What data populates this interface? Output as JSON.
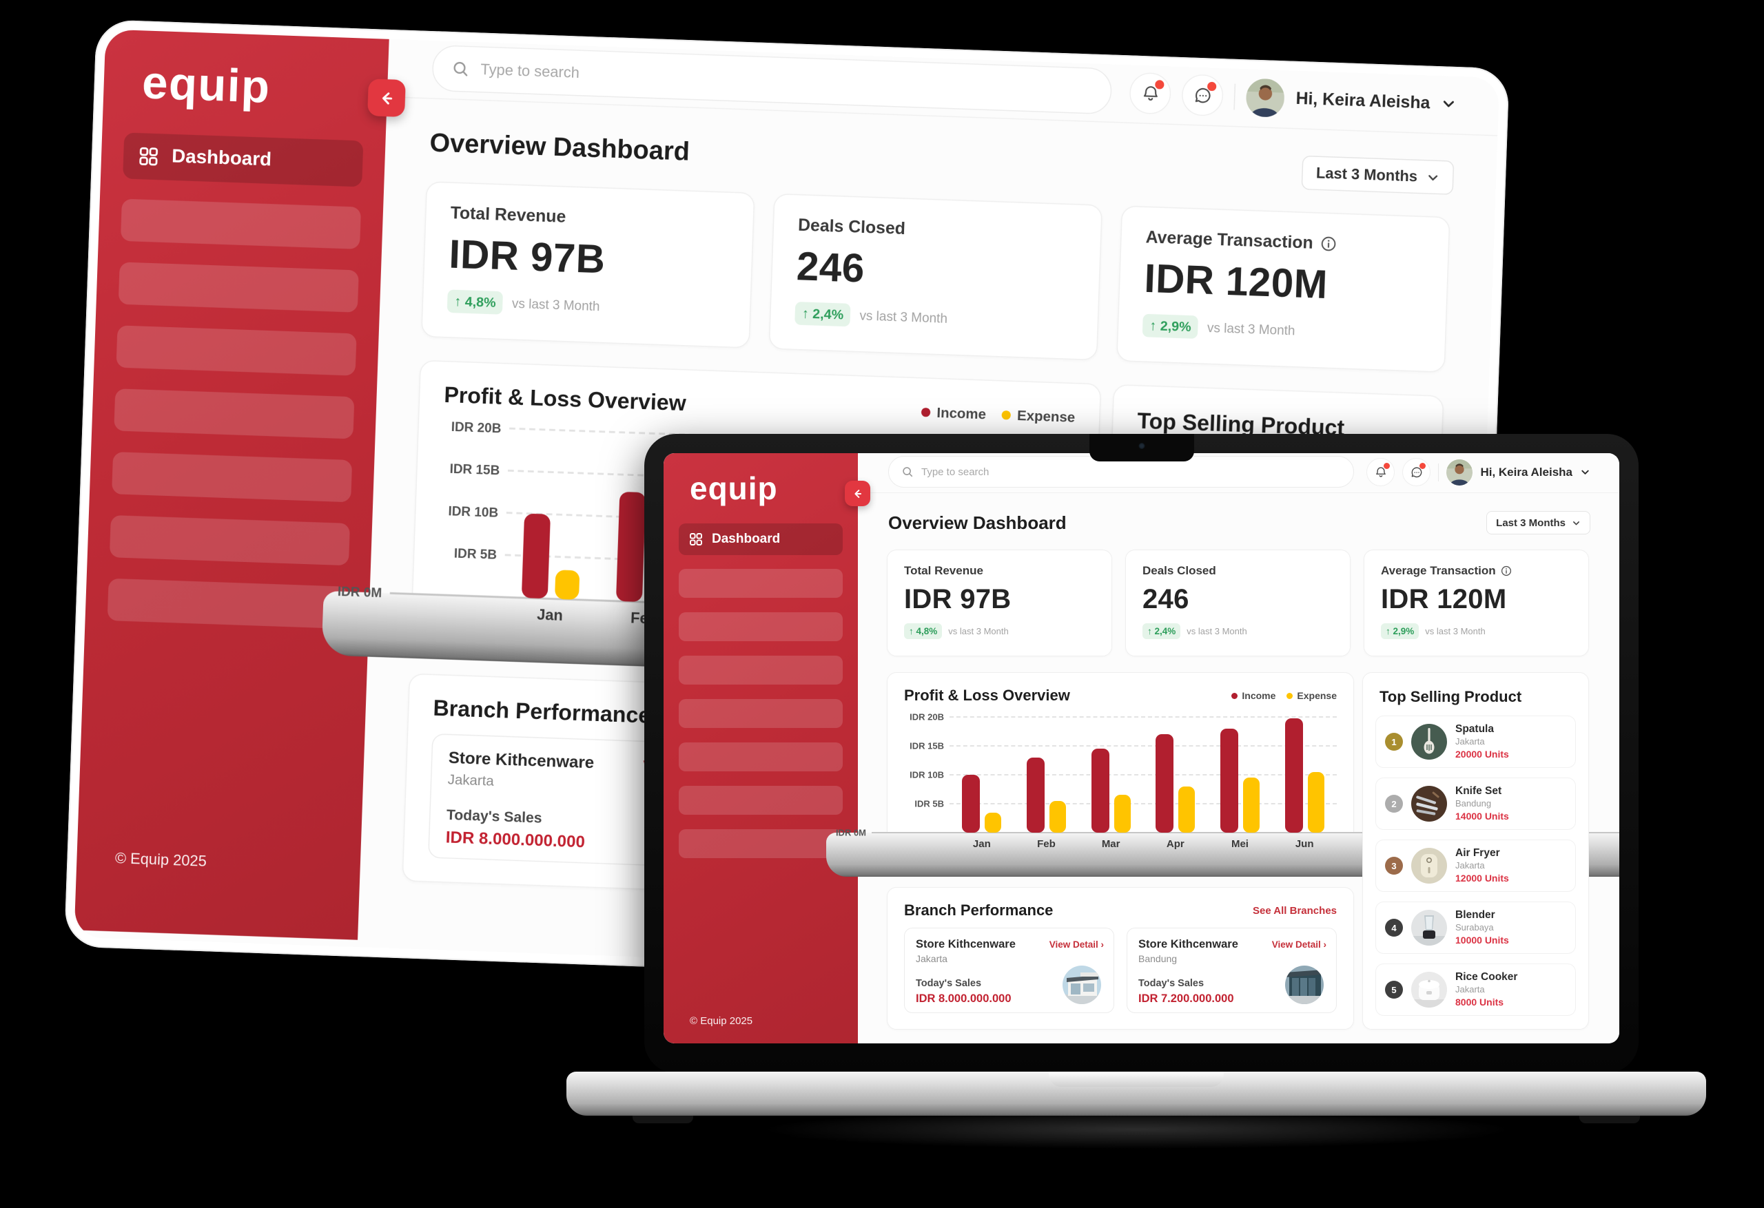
{
  "brand": {
    "logo": "equip",
    "copyright": "© Equip 2025",
    "primary_color": "#BE2B36",
    "accent_link_color": "#C5303A"
  },
  "sidebar": {
    "dashboard": "Dashboard",
    "dashboard_icon": "grid-icon"
  },
  "topbar": {
    "search_placeholder": "Type to search",
    "greeting": "Hi, Keira Aleisha",
    "notification_icon": "bell-icon",
    "messages_icon": "chat-bubble-icon",
    "user_menu_icon": "chevron-down-icon"
  },
  "page": {
    "title": "Overview Dashboard",
    "period": "Last 3 Months"
  },
  "stats": [
    {
      "label": "Total Revenue",
      "value": "IDR 97B",
      "arrow": "↑",
      "delta": "4,8%",
      "note": "vs last 3 Month"
    },
    {
      "label": "Deals Closed",
      "value": "246",
      "arrow": "↑",
      "delta": "2,4%",
      "note": "vs last 3 Month"
    },
    {
      "label": "Average Transaction",
      "value": "IDR 120M",
      "arrow": "↑",
      "delta": "2,9%",
      "note": "vs last 3 Month",
      "info_icon": "info-circle-icon"
    }
  ],
  "chart_data": {
    "type": "bar",
    "title": "Profit & Loss Overview",
    "categories": [
      "Jan",
      "Feb",
      "Mar",
      "Apr",
      "Mei",
      "Jun"
    ],
    "series": [
      {
        "name": "Income",
        "color": "#B11F2F",
        "values": [
          10,
          13,
          14.5,
          17,
          18,
          19.8
        ]
      },
      {
        "name": "Expense",
        "color": "#FFC400",
        "values": [
          3.5,
          5.5,
          6.5,
          8,
          9.5,
          10.5
        ]
      }
    ],
    "unit": "IDR billions",
    "y_ticks": [
      "IDR 20B",
      "IDR 15B",
      "IDR 10B",
      "IDR 5B",
      "IDR 0M"
    ],
    "ylim": [
      0,
      20
    ],
    "grid": "dashed-horizontal",
    "legend_position": "top-right"
  },
  "branches": {
    "title": "Branch Performance",
    "see_all": "See All Branches",
    "cards": [
      {
        "name": "Store Kithcenware",
        "city": "Jakarta",
        "detail": "View Detail",
        "chevron": "›",
        "sales_label": "Today's Sales",
        "sales": "IDR 8.000.000.000",
        "photo": "storefront-photo"
      },
      {
        "name": "Store Kithcenware",
        "city": "Bandung",
        "detail": "View Detail",
        "chevron": "›",
        "sales_label": "Today's Sales",
        "sales": "IDR 7.200.000.000",
        "photo": "storefront-photo"
      }
    ]
  },
  "top_products": {
    "title": "Top Selling Product",
    "items": [
      {
        "rank": "1",
        "name": "Spatula",
        "city": "Jakarta",
        "units": "20000 Units",
        "badge_style": "background:#A98E2F",
        "thumb": "spatula-photo"
      },
      {
        "rank": "2",
        "name": "Knife Set",
        "city": "Bandung",
        "units": "14000 Units",
        "badge_style": "background:#ACACAC",
        "thumb": "knife-set-photo"
      },
      {
        "rank": "3",
        "name": "Air Fryer",
        "city": "Jakarta",
        "units": "12000 Units",
        "badge_style": "background:#9C6B4A",
        "thumb": "air-fryer-photo"
      },
      {
        "rank": "4",
        "name": "Blender",
        "city": "Surabaya",
        "units": "10000 Units",
        "badge_style": "background:#3E3E3E",
        "thumb": "blender-photo"
      },
      {
        "rank": "5",
        "name": "Rice Cooker",
        "city": "Jakarta",
        "units": "8000 Units",
        "badge_style": "background:#3E3E3E",
        "thumb": "rice-cooker-photo"
      }
    ]
  },
  "status_colors": {
    "positive_text": "#2E9E5B",
    "positive_bg": "#E5F4E9",
    "units_red": "#DB3344"
  }
}
